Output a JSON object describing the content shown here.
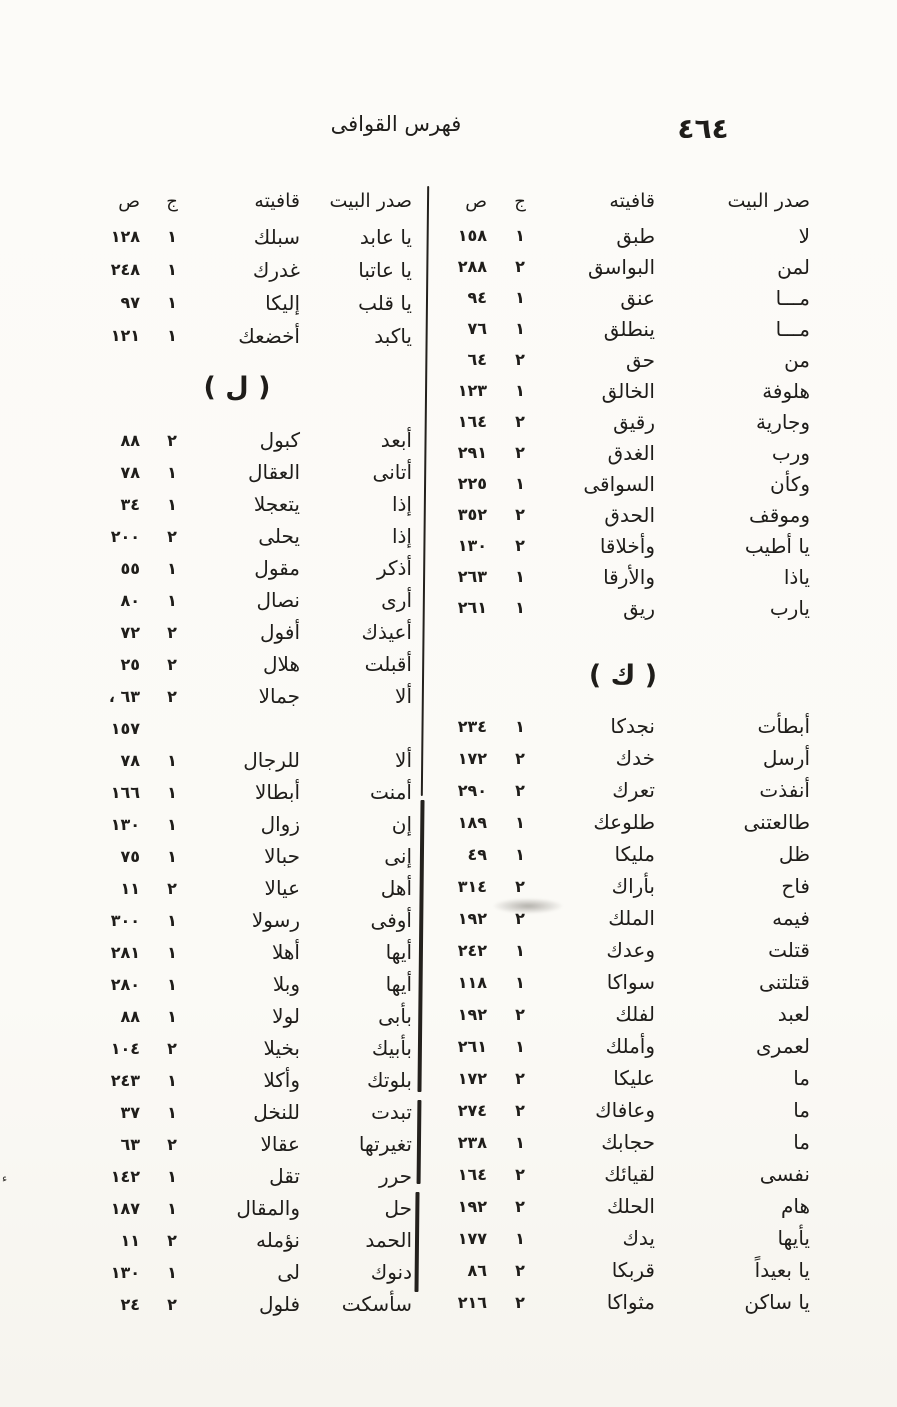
{
  "page": {
    "number": "٤٦٤",
    "title": "فهرس القوافى"
  },
  "colors": {
    "paper": "#fcfbf8",
    "ink": "#1f1d1a"
  },
  "right_column": {
    "headers": [
      "صدر البيت",
      "قافيته",
      "ج",
      "ص"
    ],
    "groups": [
      {
        "rows": [
          [
            "لا",
            "طبق",
            "١",
            "١٥٨"
          ],
          [
            "لمن",
            "البواسق",
            "٢",
            "٢٨٨"
          ],
          [
            "مـــا",
            "عنق",
            "١",
            "٩٤"
          ],
          [
            "مـــا",
            "ينطلق",
            "١",
            "٧٦"
          ],
          [
            "من",
            "حق",
            "٢",
            "٦٤"
          ],
          [
            "هلوفة",
            "الخالق",
            "١",
            "١٢٣"
          ],
          [
            "وجارية",
            "رقيق",
            "٢",
            "١٦٤"
          ],
          [
            "ورب",
            "الغدق",
            "٢",
            "٢٩١"
          ],
          [
            "وكأن",
            "السواقى",
            "١",
            "٢٢٥"
          ],
          [
            "وموقف",
            "الحدق",
            "٢",
            "٣٥٢"
          ],
          [
            "يا أطيب",
            "وأخلاقا",
            "٢",
            "١٣٠"
          ],
          [
            "ياذا",
            "والأرقا",
            "١",
            "٢٦٣"
          ],
          [
            "يارب",
            "ريق",
            "١",
            "٢٦١"
          ]
        ]
      },
      {
        "heading": "( ك )",
        "rows": [
          [
            "أبطأت",
            "نجدكا",
            "١",
            "٢٣٤"
          ],
          [
            "أرسل",
            "خدك",
            "٢",
            "١٧٢"
          ],
          [
            "أنفذت",
            "تعرك",
            "٢",
            "٢٩٠"
          ],
          [
            "طالعتنى",
            "طلوعك",
            "١",
            "١٨٩"
          ],
          [
            "ظل",
            "مليكا",
            "١",
            "٤٩"
          ],
          [
            "فاح",
            "بأراك",
            "٢",
            "٣١٤"
          ],
          [
            "فيمه",
            "الملك",
            "٢",
            "١٩٢"
          ],
          [
            "قتلت",
            "وعدك",
            "١",
            "٢٤٢"
          ],
          [
            "قتلتنى",
            "سواكا",
            "١",
            "١١٨"
          ],
          [
            "لعبد",
            "لفلك",
            "٢",
            "١٩٢"
          ],
          [
            "لعمرى",
            "وأملك",
            "١",
            "٢٦١"
          ],
          [
            "ما",
            "عليكا",
            "٢",
            "١٧٢"
          ],
          [
            "ما",
            "وعافاك",
            "٢",
            "٢٧٤"
          ],
          [
            "ما",
            "حجابك",
            "١",
            "٢٣٨"
          ],
          [
            "نفسى",
            "لقيائك",
            "٢",
            "١٦٤"
          ],
          [
            "هام",
            "الحلك",
            "٢",
            "١٩٢"
          ],
          [
            "يأيها",
            "يدك",
            "١",
            "١٧٧"
          ],
          [
            "يا بعيداً",
            "قربكا",
            "٢",
            "٨٦"
          ],
          [
            "يا ساكن",
            "مثواكا",
            "٢",
            "٢١٦"
          ]
        ]
      }
    ]
  },
  "left_column": {
    "headers": [
      "صدر البيت",
      "قافيته",
      "ج",
      "ص"
    ],
    "groups": [
      {
        "rows": [
          [
            "يا عابد",
            "سبلك",
            "١",
            "١٢٨"
          ],
          [
            "يا عاتبا",
            "غدرك",
            "١",
            "٢٤٨"
          ],
          [
            "يا قلب",
            "إليكا",
            "١",
            "٩٧"
          ],
          [
            "ياكبد",
            "أخضعك",
            "١",
            "١٢١"
          ]
        ]
      },
      {
        "heading": "( ل )",
        "rows": [
          [
            "أبعد",
            "كبول",
            "٢",
            "٨٨"
          ],
          [
            "أتانى",
            "العقال",
            "١",
            "٧٨"
          ],
          [
            "إذا",
            "يتعجلا",
            "١",
            "٣٤"
          ],
          [
            "إذا",
            "يحلى",
            "٢",
            "٢٠٠"
          ],
          [
            "أذكر",
            "مقول",
            "١",
            "٥٥"
          ],
          [
            "أرى",
            "نصال",
            "١",
            "٨٠"
          ],
          [
            "أعيذك",
            "أفول",
            "٢",
            "٧٢"
          ],
          [
            "أقبلت",
            "هلال",
            "٢",
            "٢٥"
          ],
          [
            "ألا",
            "جمالا",
            "٢",
            "٦٣ ،"
          ],
          [
            "",
            "",
            "",
            "١٥٧"
          ],
          [
            "ألا",
            "للرجال",
            "١",
            "٧٨"
          ],
          [
            "أمنت",
            "أبطالا",
            "١",
            "١٦٦"
          ],
          [
            "إن",
            "زوال",
            "١",
            "١٣٠"
          ],
          [
            "إنى",
            "حبالا",
            "١",
            "٧٥"
          ],
          [
            "أهل",
            "عيالا",
            "٢",
            "١١"
          ],
          [
            "أوفى",
            "رسولا",
            "١",
            "٣٠٠"
          ],
          [
            "أيها",
            "أهلا",
            "١",
            "٢٨١"
          ],
          [
            "أيها",
            "وبلا",
            "١",
            "٢٨٠"
          ],
          [
            "بأبى",
            "لولا",
            "١",
            "٨٨"
          ],
          [
            "بأبيك",
            "بخيلا",
            "٢",
            "١٠٤"
          ],
          [
            "بلوتك",
            "وأكلا",
            "١",
            "٢٤٣"
          ],
          [
            "تبدت",
            "للنخل",
            "١",
            "٣٧"
          ],
          [
            "تغيرتها",
            "عقالا",
            "٢",
            "٦٣"
          ],
          [
            "حرر",
            "تقل",
            "١",
            "١٤٢"
          ],
          [
            "حل",
            "والمقال",
            "١",
            "١٨٧"
          ],
          [
            "الحمد",
            "نؤمله",
            "٢",
            "١١"
          ],
          [
            "دنوك",
            "لى",
            "١",
            "١٣٠"
          ],
          [
            "سأسكت",
            "فلول",
            "٢",
            "٢٤"
          ]
        ]
      }
    ]
  },
  "artifacts": {
    "stray_mark": "ء"
  }
}
